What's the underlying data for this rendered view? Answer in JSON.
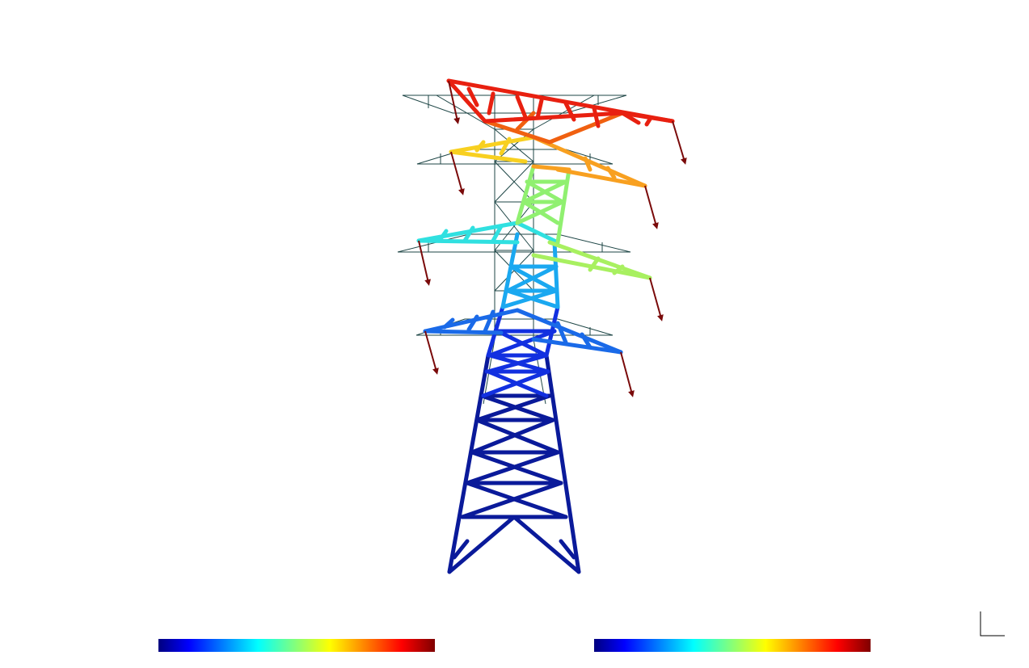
{
  "view": {
    "mesh_color": "#1e4646",
    "load_arrow_color": "#7a0a0a",
    "background": "#ffffff"
  },
  "colormap": {
    "name": "jet",
    "stops": [
      "#00007f",
      "#0000ff",
      "#0080ff",
      "#00ffff",
      "#80ff80",
      "#ffff00",
      "#ff8000",
      "#ff0000",
      "#7f0000"
    ]
  },
  "legends": [
    {
      "id": "left",
      "label": ""
    },
    {
      "id": "right",
      "label": ""
    }
  ],
  "icons": {
    "axis_triad": "axis-triad-icon",
    "load_arrow": "arrow-down-icon"
  }
}
